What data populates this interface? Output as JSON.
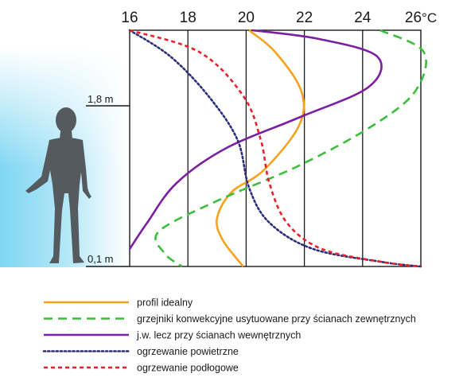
{
  "chart_data": {
    "type": "line",
    "x_ticks": [
      "16",
      "18",
      "20",
      "22",
      "24",
      "26"
    ],
    "x_unit": "°C",
    "xlim": [
      16,
      26
    ],
    "height_labels": [
      "1,8 m",
      "0,1 m"
    ],
    "series": [
      {
        "name": "profil idealny",
        "color": "#f7a21b",
        "dash": "solid",
        "points": [
          [
            20.1,
            2.7
          ],
          [
            21.0,
            2.45
          ],
          [
            21.9,
            2.0
          ],
          [
            21.8,
            1.6
          ],
          [
            20.6,
            1.1
          ],
          [
            19.5,
            0.85
          ],
          [
            19.0,
            0.55
          ],
          [
            19.2,
            0.3
          ],
          [
            19.9,
            0.0
          ]
        ]
      },
      {
        "name": "grzejniki konwekcyjne usytuowane przy ścianach zewnętrznych",
        "color": "#3bbf3b",
        "dash": "long-dash",
        "points": [
          [
            24.6,
            2.7
          ],
          [
            26.1,
            2.45
          ],
          [
            25.8,
            2.0
          ],
          [
            24.3,
            1.6
          ],
          [
            21.8,
            1.15
          ],
          [
            19.0,
            0.75
          ],
          [
            17.0,
            0.4
          ],
          [
            17.2,
            0.15
          ],
          [
            17.8,
            0.0
          ]
        ]
      },
      {
        "name": "j.w. lecz przy ścianach wewnętrznych",
        "color": "#7b1fa2",
        "dash": "solid",
        "points": [
          [
            20.2,
            2.7
          ],
          [
            22.5,
            2.6
          ],
          [
            24.5,
            2.4
          ],
          [
            24.2,
            2.05
          ],
          [
            21.8,
            1.7
          ],
          [
            19.3,
            1.35
          ],
          [
            17.6,
            0.95
          ],
          [
            16.6,
            0.5
          ],
          [
            16.0,
            0.2
          ]
        ]
      },
      {
        "name": "ogrzewanie powietrzne",
        "color": "#2b2f7a",
        "dash": "dotted",
        "points": [
          [
            16.0,
            2.7
          ],
          [
            17.4,
            2.4
          ],
          [
            18.7,
            1.95
          ],
          [
            19.7,
            1.45
          ],
          [
            20.1,
            0.9
          ],
          [
            20.8,
            0.5
          ],
          [
            22.3,
            0.2
          ],
          [
            24.7,
            0.05
          ],
          [
            26.0,
            0.0
          ]
        ]
      },
      {
        "name": "ogrzewanie podłogowe",
        "color": "#e8202a",
        "dash": "short-dash",
        "points": [
          [
            16.0,
            2.7
          ],
          [
            18.4,
            2.45
          ],
          [
            19.9,
            1.95
          ],
          [
            20.5,
            1.45
          ],
          [
            20.8,
            0.95
          ],
          [
            21.4,
            0.5
          ],
          [
            22.6,
            0.2
          ],
          [
            24.7,
            0.05
          ],
          [
            26.0,
            0.0
          ]
        ]
      }
    ]
  }
}
